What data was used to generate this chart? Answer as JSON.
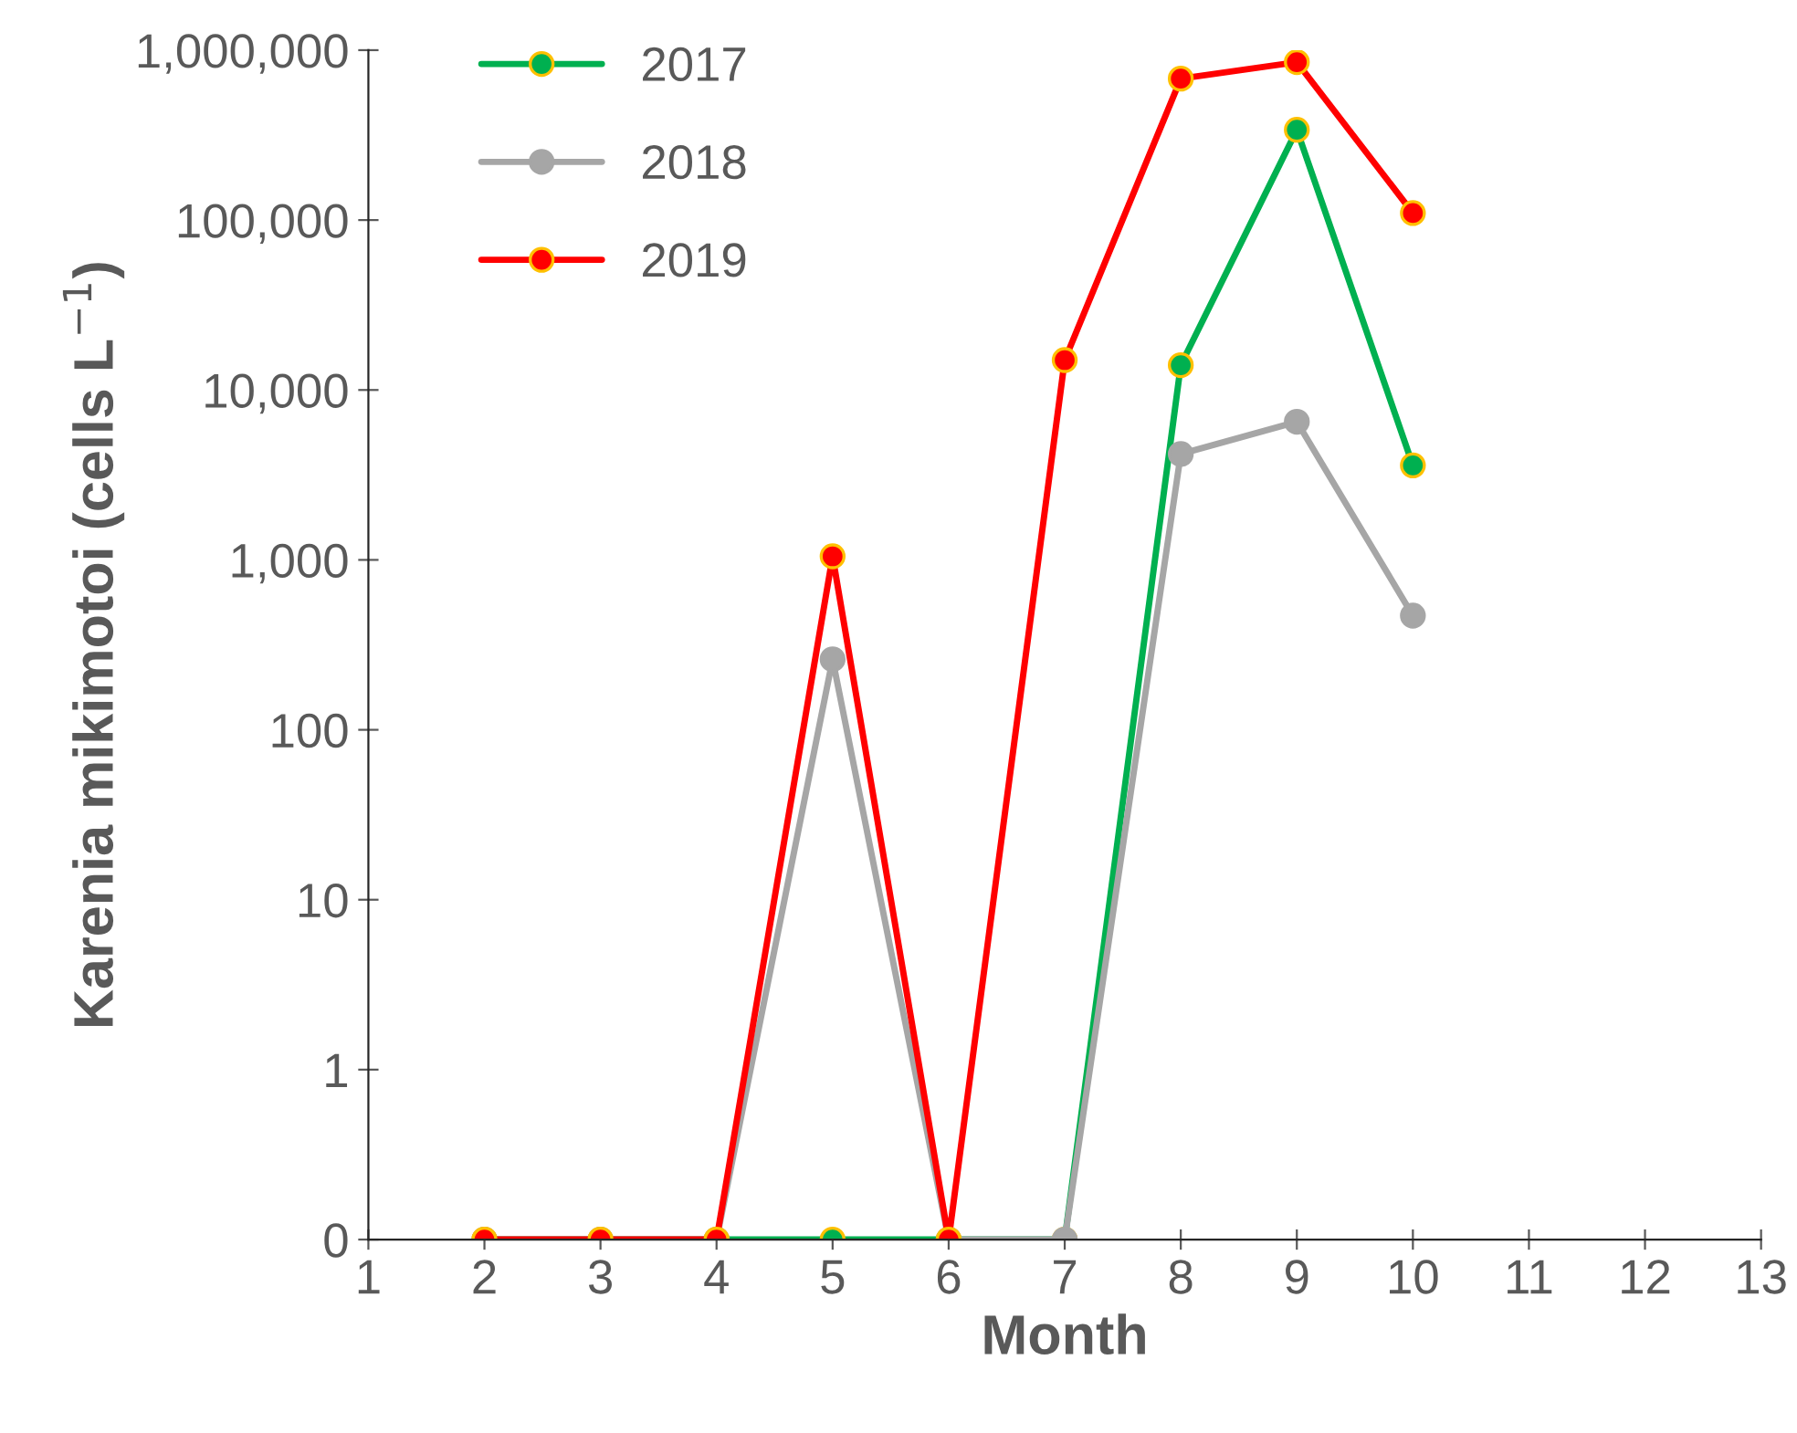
{
  "chart_data": {
    "type": "line",
    "xlabel": "Month",
    "ylabel": "Karenia mikimotoi (cells L$^{−1}$)",
    "x": [
      2,
      3,
      4,
      5,
      6,
      7,
      8,
      9,
      10
    ],
    "series": [
      {
        "name": "2017",
        "color": "#00b050",
        "values": [
          0.1,
          0.1,
          0.1,
          0.1,
          0.1,
          0.1,
          14000,
          340000,
          3600
        ]
      },
      {
        "name": "2018",
        "color": "#a6a6a6",
        "values": [
          0.1,
          0.1,
          0.1,
          260,
          0.1,
          0.1,
          4200,
          6500,
          470
        ]
      },
      {
        "name": "2019",
        "color": "#ff0000",
        "values": [
          0.1,
          0.1,
          0.1,
          1050,
          0.1,
          15000,
          680000,
          850000,
          110000
        ]
      }
    ],
    "log": "y",
    "xlim": [
      1,
      13
    ],
    "xticks": [
      1,
      2,
      3,
      4,
      5,
      6,
      7,
      8,
      9,
      10,
      11,
      12,
      13
    ],
    "ylim": [
      0.1,
      1000000
    ],
    "yticks": [
      {
        "value": 0.1,
        "label": "0"
      },
      1,
      10,
      100,
      {
        "value": 1000,
        "label": "1,000"
      },
      {
        "value": 10000,
        "label": "10,000"
      },
      {
        "value": 100000,
        "label": "100,000"
      },
      {
        "value": 1000000,
        "label": "1,000,000"
      }
    ],
    "grid": false,
    "legend": "top left",
    "marker": "circle",
    "line_style": "solid"
  }
}
